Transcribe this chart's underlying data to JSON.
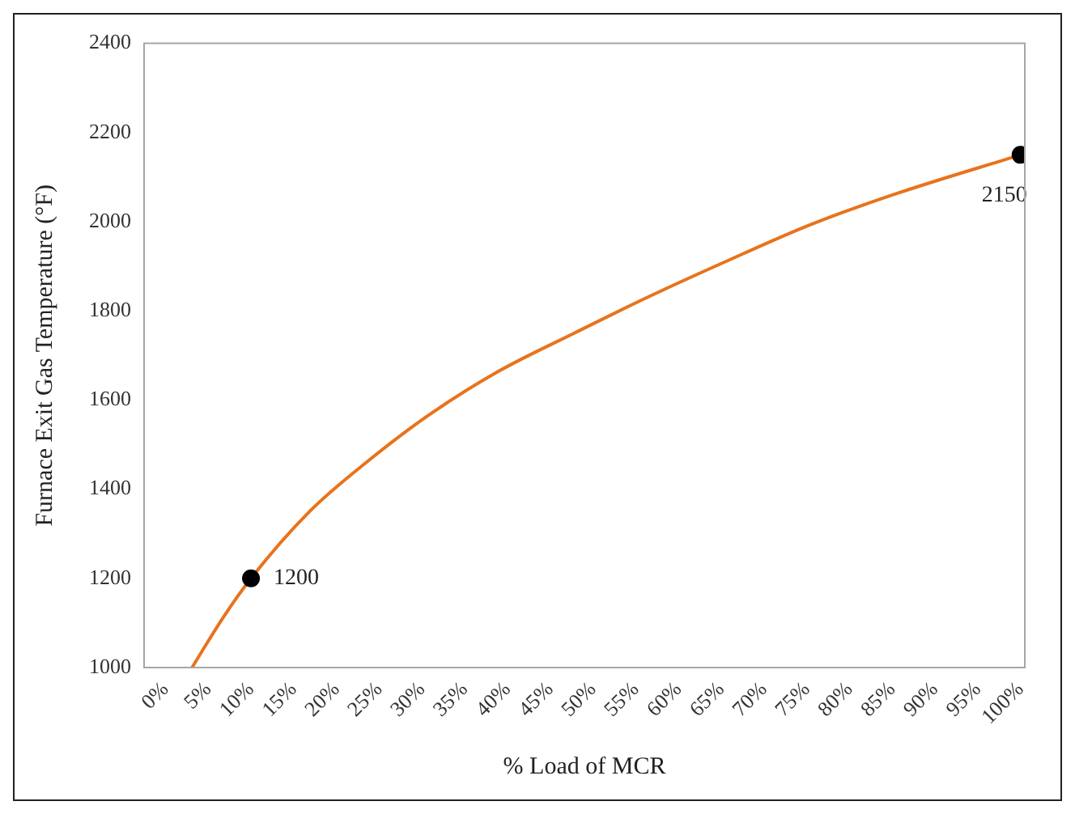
{
  "chart_data": {
    "type": "line",
    "xlabel": "% Load of MCR",
    "ylabel": "Furnace Exit Gas Temperature (°F)",
    "xlim": [
      -2.5,
      100.5
    ],
    "ylim": [
      1000,
      2400
    ],
    "xticks": [
      {
        "value": 0,
        "label": "0%"
      },
      {
        "value": 5,
        "label": "5%"
      },
      {
        "value": 10,
        "label": "10%"
      },
      {
        "value": 15,
        "label": "15%"
      },
      {
        "value": 20,
        "label": "20%"
      },
      {
        "value": 25,
        "label": "25%"
      },
      {
        "value": 30,
        "label": "30%"
      },
      {
        "value": 35,
        "label": "35%"
      },
      {
        "value": 40,
        "label": "40%"
      },
      {
        "value": 45,
        "label": "45%"
      },
      {
        "value": 50,
        "label": "50%"
      },
      {
        "value": 55,
        "label": "55%"
      },
      {
        "value": 60,
        "label": "60%"
      },
      {
        "value": 65,
        "label": "65%"
      },
      {
        "value": 70,
        "label": "70%"
      },
      {
        "value": 75,
        "label": "75%"
      },
      {
        "value": 80,
        "label": "80%"
      },
      {
        "value": 85,
        "label": "85%"
      },
      {
        "value": 90,
        "label": "90%"
      },
      {
        "value": 95,
        "label": "95%"
      },
      {
        "value": 100,
        "label": "100%"
      }
    ],
    "yticks": [
      1000,
      1200,
      1400,
      1600,
      1800,
      2000,
      2200,
      2400
    ],
    "grid": false,
    "legend": false,
    "line_style": "solid",
    "series": [
      {
        "color": "#e8731c",
        "marker": "none",
        "x": [
          3.1,
          6.6,
          10,
          16.9,
          23.8,
          30.7,
          39,
          47.9,
          56.2,
          65.2,
          75.5,
          85.8,
          100
        ],
        "values": [
          1000,
          1108,
          1200,
          1351,
          1465,
          1565,
          1665,
          1751,
          1829,
          1908,
          1994,
          2065,
          2150
        ]
      },
      {
        "type": "scatter",
        "color": "#000000",
        "marker": "circle",
        "x": [
          10,
          100
        ],
        "values": [
          1200,
          2150
        ],
        "value_labels": [
          "1200",
          "2150"
        ]
      }
    ]
  }
}
